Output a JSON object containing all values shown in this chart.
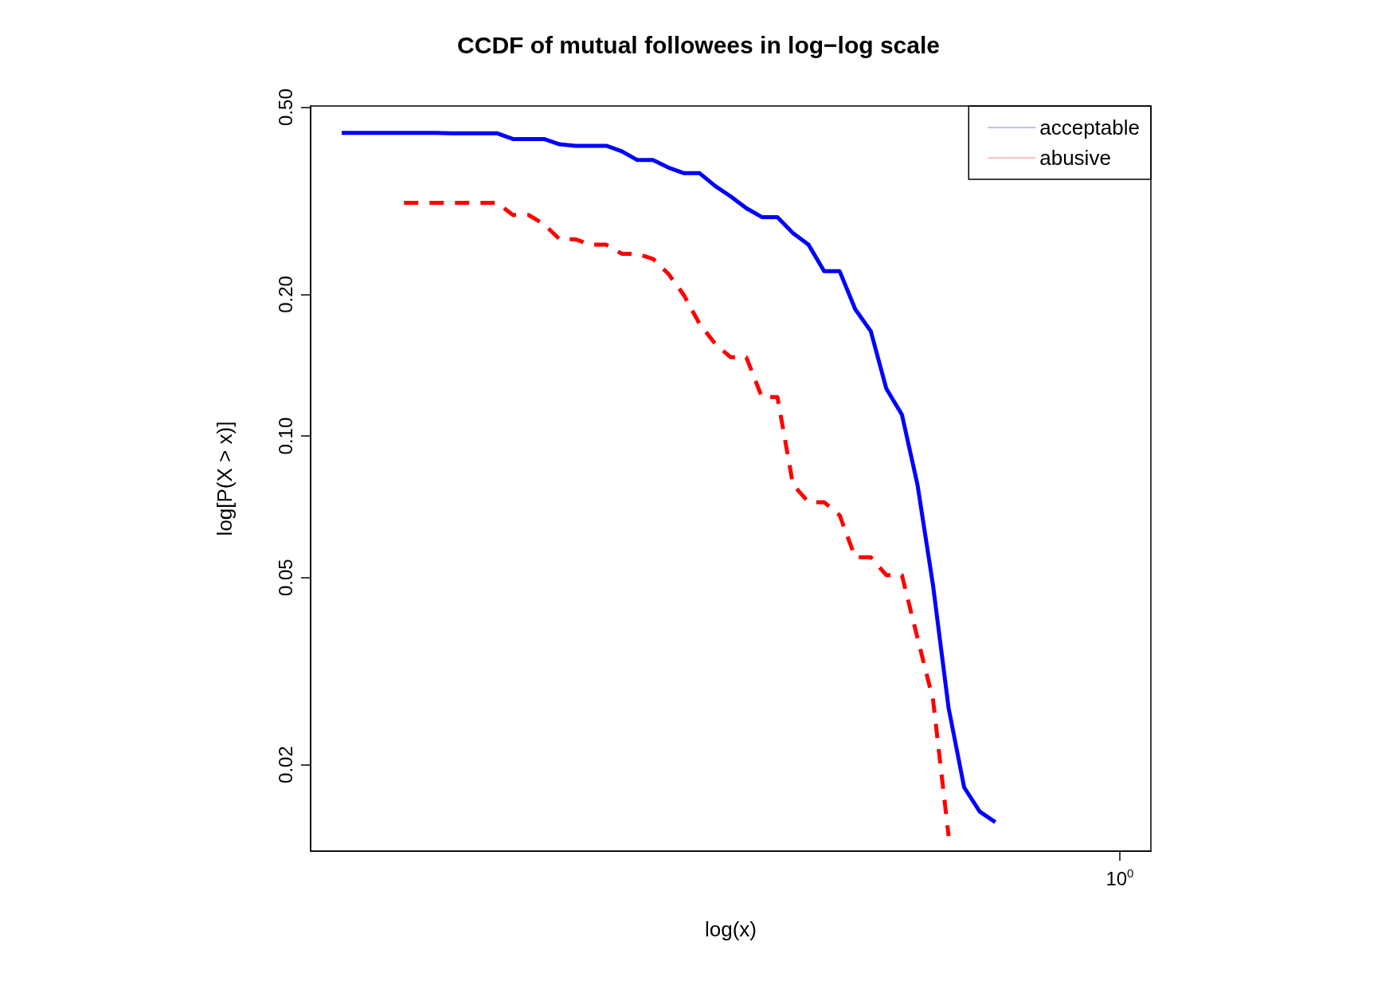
{
  "chart_data": {
    "type": "line",
    "title": "CCDF of mutual followees in log−log scale",
    "xlabel": "log(x)",
    "ylabel": "log[P(X > x)]",
    "log": "y",
    "grid": false,
    "legend": "top right",
    "marker": "none",
    "categories": [
      null,
      null,
      null,
      null,
      null,
      null,
      null,
      null,
      null,
      null,
      null,
      null,
      null,
      null,
      null,
      null,
      null,
      null,
      null,
      null,
      null,
      null,
      null,
      null,
      null,
      null,
      null,
      null,
      null,
      null,
      null,
      null,
      null,
      null,
      null,
      null,
      null,
      null,
      null,
      null,
      null,
      null,
      null,
      null,
      null,
      null,
      null,
      null,
      null,
      null,
      null,
      null,
      "10$^{0}$",
      null,
      null
    ],
    "ylim": [
      0.0131,
      0.503
    ],
    "yticks": [
      {
        "value": 0.02,
        "label": "0.02"
      },
      {
        "value": 0.05,
        "label": "0.05"
      },
      {
        "value": 0.1,
        "label": "0.10"
      },
      {
        "value": 0.2,
        "label": "0.20"
      },
      {
        "value": 0.5,
        "label": "0.50"
      }
    ],
    "series": [
      {
        "name": "acceptable",
        "color": "#0000ff",
        "line_style": "solid",
        "values": [
          null,
          null,
          0.441,
          0.441,
          0.441,
          0.441,
          0.441,
          0.441,
          0.441,
          0.44,
          0.44,
          0.44,
          0.44,
          0.428,
          0.428,
          0.428,
          0.417,
          0.414,
          0.414,
          0.414,
          0.403,
          0.386,
          0.386,
          0.372,
          0.362,
          0.362,
          0.34,
          0.323,
          0.305,
          0.292,
          0.292,
          0.27,
          0.255,
          0.224,
          0.224,
          0.186,
          0.167,
          0.126,
          0.111,
          0.0788,
          0.0481,
          0.0264,
          0.0179,
          0.0159,
          0.0151,
          null,
          null,
          null,
          null,
          null,
          null,
          null,
          null,
          null,
          null
        ]
      },
      {
        "name": "abusive",
        "color": "#ff0000",
        "line_style": "dashed",
        "values": [
          null,
          null,
          null,
          null,
          null,
          null,
          0.313,
          0.313,
          0.313,
          0.313,
          0.313,
          0.313,
          0.313,
          0.295,
          0.295,
          0.282,
          0.262,
          0.262,
          0.255,
          0.255,
          0.244,
          0.244,
          0.238,
          0.221,
          0.199,
          0.173,
          0.157,
          0.147,
          0.147,
          0.121,
          0.121,
          0.0788,
          0.0723,
          0.0723,
          0.0678,
          0.0552,
          0.0552,
          0.0506,
          0.0506,
          0.0372,
          0.0275,
          0.0141,
          null,
          null,
          null,
          null,
          null,
          null,
          null,
          null,
          null,
          null,
          null,
          null,
          null
        ]
      }
    ]
  }
}
